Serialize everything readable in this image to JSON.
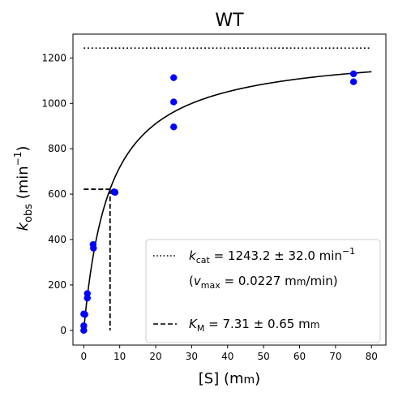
{
  "chart_data": {
    "type": "scatter",
    "title": "WT",
    "xlabel": {
      "main": "[S] (m",
      "sc": "m",
      "tail": ")"
    },
    "ylabel": {
      "k": "k",
      "sub": "obs",
      "unit_open": " (min",
      "sup": "−1",
      "unit_close": ")"
    },
    "xlim": [
      -3,
      84
    ],
    "ylim": [
      -65,
      1305
    ],
    "xticks": [
      0,
      10,
      20,
      30,
      40,
      50,
      60,
      70,
      80
    ],
    "yticks": [
      0,
      200,
      400,
      600,
      800,
      1000,
      1200
    ],
    "points": {
      "color": "#0000ff",
      "x": [
        0,
        0,
        0,
        0.3,
        1,
        1,
        2.6,
        2.7,
        8.4,
        8.7,
        25,
        25,
        25,
        75,
        75
      ],
      "y": [
        0,
        20,
        72,
        70,
        162,
        142,
        378,
        362,
        610,
        608,
        1113,
        1006,
        896,
        1130,
        1095
      ]
    },
    "fit": {
      "kcat": 1243.2,
      "KM": 7.31,
      "x_range": [
        0,
        80
      ],
      "color": "#000000"
    },
    "vmax_line": {
      "y": 1243.2,
      "x_range": [
        0,
        80
      ],
      "style": "dotted"
    },
    "km_line": {
      "x": 7.31,
      "y": 621.6,
      "x_start": 0,
      "style": "dashed"
    },
    "legend": {
      "position": "lower-right",
      "entries": [
        {
          "style": "dotted",
          "k": "k",
          "sub": "cat",
          "rest": " = 1243.2 ± 32.0 min",
          "sup": "−1"
        },
        {
          "style": "none",
          "open": "(",
          "v": "v",
          "sub": "max",
          "rest": " = 0.0227 m",
          "sc": "m",
          "tail": "/min)"
        },
        {
          "style": "dashed",
          "k": "K",
          "sub": "M",
          "rest": " = 7.31 ± 0.65 m",
          "sc": "m"
        }
      ]
    }
  }
}
